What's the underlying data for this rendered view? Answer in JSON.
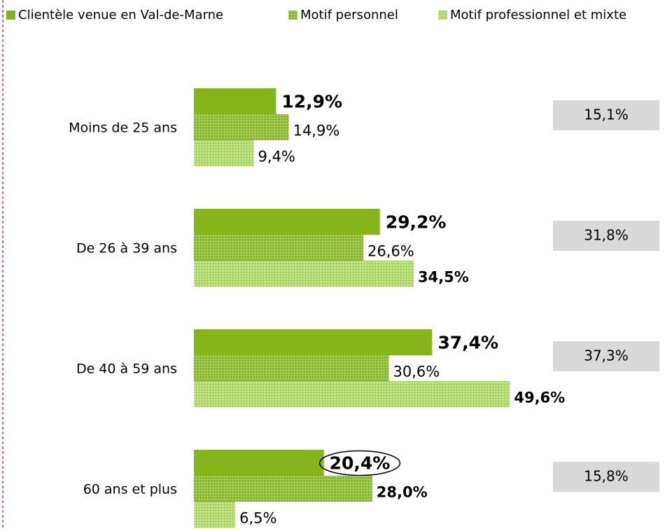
{
  "chart_data": {
    "type": "bar",
    "orientation": "horizontal",
    "categories": [
      "Moins de 25 ans",
      "De 26 à 39 ans",
      "De 40 à 59 ans",
      "60 ans et plus"
    ],
    "series": [
      {
        "name": "Clientèle venue en Val-de-Marne",
        "color": "#84b61c",
        "pattern": "solid",
        "values": [
          12.9,
          29.2,
          37.4,
          20.4
        ],
        "value_labels": [
          "12,9%",
          "29,2%",
          "37,4%",
          "20,4%"
        ],
        "label_colors": [
          "#000000",
          "#000000",
          "#000000",
          "#000000"
        ]
      },
      {
        "name": "Motif personnel",
        "color": "#84b61c",
        "pattern": "grid-dark",
        "values": [
          14.9,
          26.6,
          30.6,
          28.0
        ],
        "value_labels": [
          "14,9%",
          "26,6%",
          "30,6%",
          "28,0%"
        ],
        "label_colors": [
          "#000000",
          "#000000",
          "#000000",
          "#e30613"
        ]
      },
      {
        "name": "Motif professionnel et mixte",
        "color": "#a9d16a",
        "pattern": "grid-light",
        "values": [
          9.4,
          34.5,
          49.6,
          6.5
        ],
        "value_labels": [
          "9,4%",
          "34,5%",
          "49,6%",
          "6,5%"
        ],
        "label_colors": [
          "#000000",
          "#e30613",
          "#e30613",
          "#000000"
        ]
      }
    ],
    "reference_values": [
      15.1,
      31.8,
      37.3,
      15.8
    ],
    "reference_labels": [
      "15,1%",
      "31,8%",
      "37,3%",
      "15,8%"
    ],
    "reference_color": "#d9d9d9",
    "legend": "top"
  }
}
